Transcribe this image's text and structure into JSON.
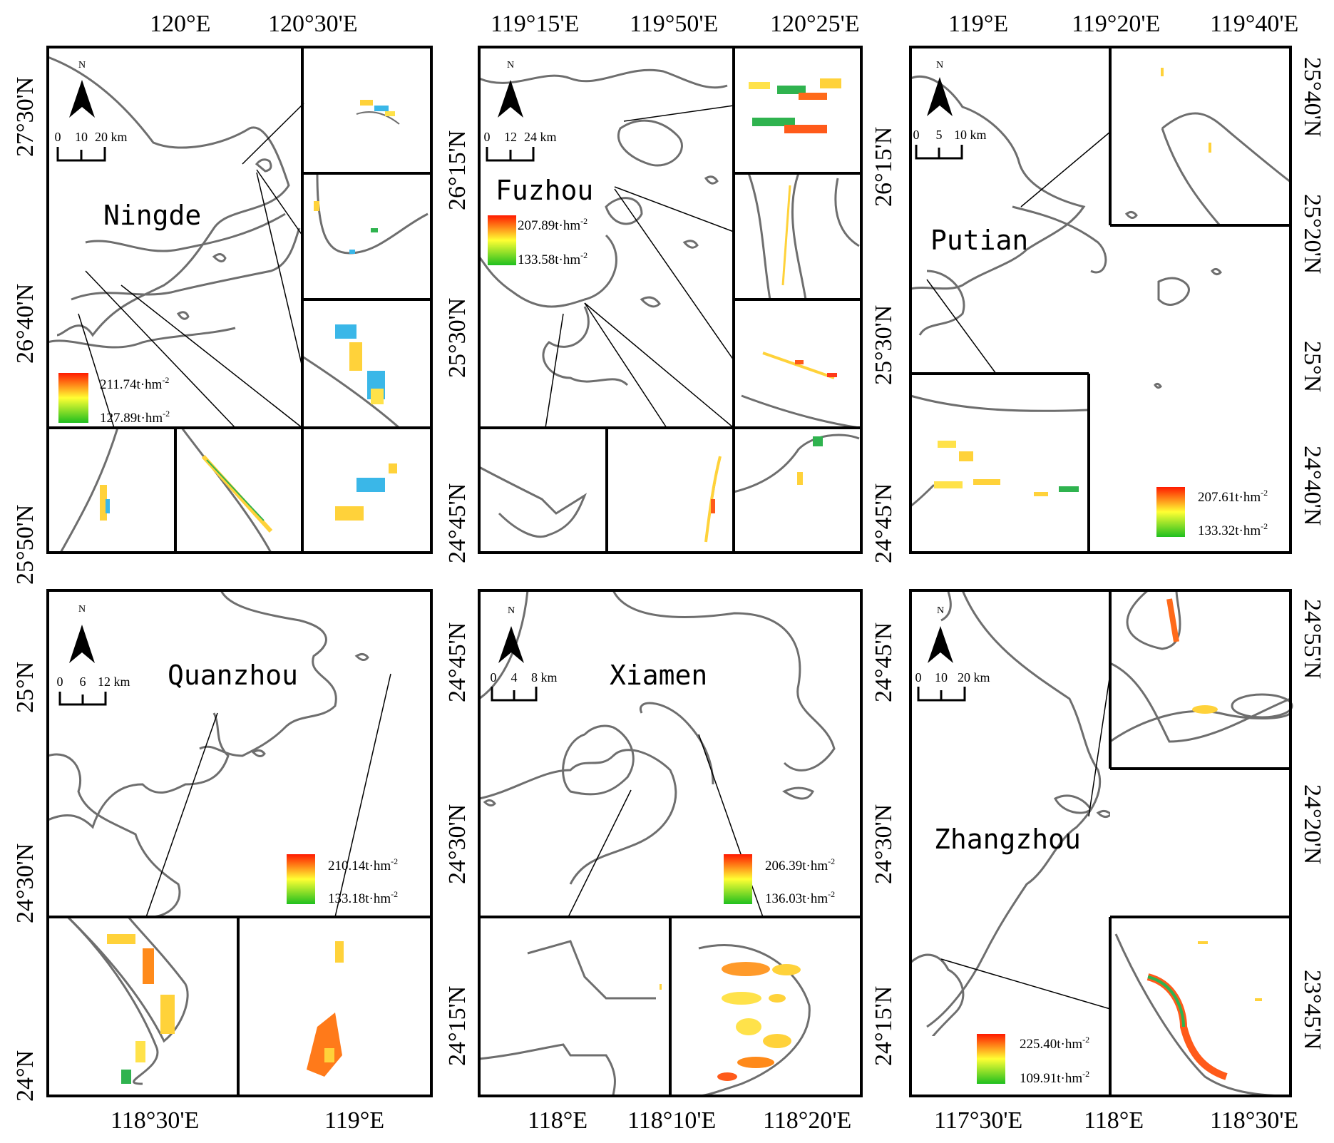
{
  "panels": [
    {
      "city": "Ningde",
      "top_ticks": [
        "120°E",
        "120°30'E"
      ],
      "side_ticks": [
        "27°30'N",
        "26°40'N",
        "25°50'N"
      ],
      "scale": {
        "zero": "0",
        "mid": "10",
        "end": "20 km"
      },
      "north": "N",
      "legend": {
        "max": "211.74t·hm",
        "min": "127.89t·hm",
        "exp": "-2"
      },
      "insets": 6
    },
    {
      "city": "Fuzhou",
      "top_ticks": [
        "119°15'E",
        "119°50'E",
        "120°25'E"
      ],
      "side_ticks": [
        "26°15'N",
        "25°30'N",
        "24°45'N"
      ],
      "scale": {
        "zero": "0",
        "mid": "12",
        "end": "24 km"
      },
      "north": "N",
      "legend": {
        "max": "207.89t·hm",
        "min": "133.58t·hm",
        "exp": "-2"
      },
      "insets": 6
    },
    {
      "city": "Putian",
      "top_ticks": [
        "119°E",
        "119°20'E",
        "119°40'E"
      ],
      "side_ticks": [
        "25°40'N",
        "25°20'N",
        "25°N",
        "24°40'N"
      ],
      "scale": {
        "zero": "0",
        "mid": "5",
        "end": "10 km"
      },
      "north": "N",
      "legend": {
        "max": "207.61t·hm",
        "min": "133.32t·hm",
        "exp": "-2"
      },
      "insets": 2
    },
    {
      "city": "Quanzhou",
      "bottom_ticks": [
        "118°30'E",
        "119°E"
      ],
      "side_ticks": [
        "25°N",
        "24°30'N",
        "24°N"
      ],
      "scale": {
        "zero": "0",
        "mid": "6",
        "end": "12 km"
      },
      "north": "N",
      "legend": {
        "max": "210.14t·hm",
        "min": "133.18t·hm",
        "exp": "-2"
      },
      "insets": 2
    },
    {
      "city": "Xiamen",
      "bottom_ticks": [
        "118°E",
        "118°10'E",
        "118°20'E"
      ],
      "side_ticks": [
        "24°45'N",
        "24°30'N",
        "24°15'N"
      ],
      "scale": {
        "zero": "0",
        "mid": "4",
        "end": "8 km"
      },
      "north": "N",
      "legend": {
        "max": "206.39t·hm",
        "min": "136.03t·hm",
        "exp": "-2"
      },
      "insets": 2
    },
    {
      "city": "Zhangzhou",
      "bottom_ticks": [
        "117°30'E",
        "118°E",
        "118°30'E"
      ],
      "side_ticks": [
        "24°55'N",
        "24°20'N",
        "23°45'N"
      ],
      "scale": {
        "zero": "0",
        "mid": "10",
        "end": "20 km"
      },
      "north": "N",
      "legend": {
        "max": "225.40t·hm",
        "min": "109.91t·hm",
        "exp": "-2"
      },
      "insets": 2
    }
  ],
  "colors": {
    "frame": "#000000",
    "coast": "#6e6e6e",
    "ramp_high": "#ff1a00",
    "ramp_mid": "#ffff33",
    "ramp_low": "#1fbf1f",
    "low_value_tint": "#33aaee"
  }
}
